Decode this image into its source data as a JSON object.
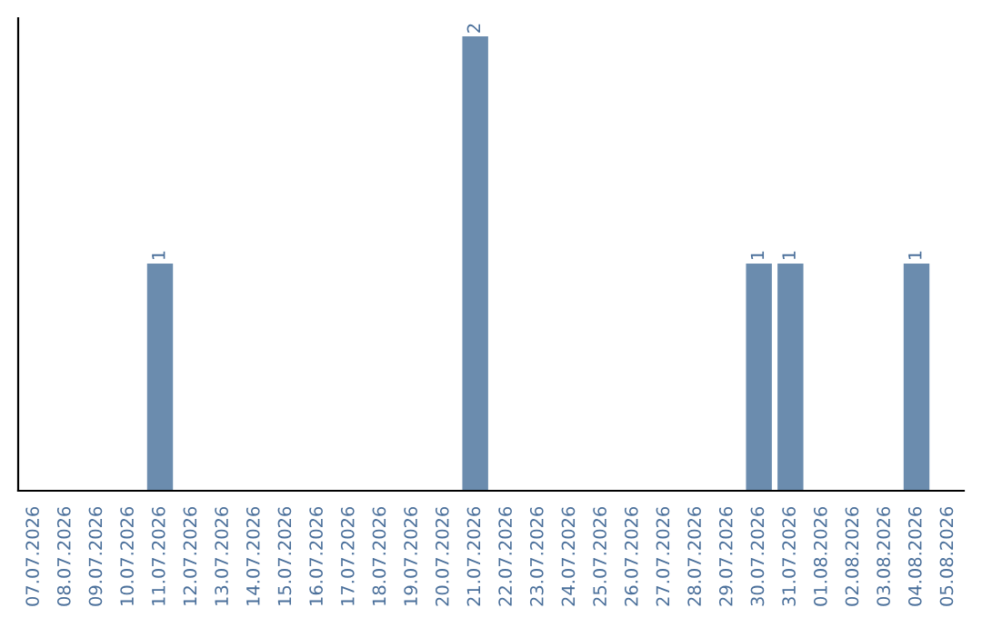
{
  "chart_data": {
    "type": "bar",
    "categories": [
      "07.07.2026",
      "08.07.2026",
      "09.07.2026",
      "10.07.2026",
      "11.07.2026",
      "12.07.2026",
      "13.07.2026",
      "14.07.2026",
      "15.07.2026",
      "16.07.2026",
      "17.07.2026",
      "18.07.2026",
      "19.07.2026",
      "20.07.2026",
      "21.07.2026",
      "22.07.2026",
      "23.07.2026",
      "24.07.2026",
      "25.07.2026",
      "26.07.2026",
      "27.07.2026",
      "28.07.2026",
      "29.07.2026",
      "30.07.2026",
      "31.07.2026",
      "01.08.2026",
      "02.08.2026",
      "03.08.2026",
      "04.08.2026",
      "05.08.2026"
    ],
    "values": [
      0,
      0,
      0,
      0,
      1,
      0,
      0,
      0,
      0,
      0,
      0,
      0,
      0,
      0,
      2,
      0,
      0,
      0,
      0,
      0,
      0,
      0,
      0,
      1,
      1,
      0,
      0,
      0,
      1,
      0
    ],
    "color": "#6b8cae",
    "value_labels": [
      null,
      null,
      null,
      null,
      "1",
      null,
      null,
      null,
      null,
      null,
      null,
      null,
      null,
      null,
      "2",
      null,
      null,
      null,
      null,
      null,
      null,
      null,
      null,
      "1",
      "1",
      null,
      null,
      null,
      "1",
      null
    ],
    "tick_labels": "x",
    "grid": false,
    "legend": false
  }
}
